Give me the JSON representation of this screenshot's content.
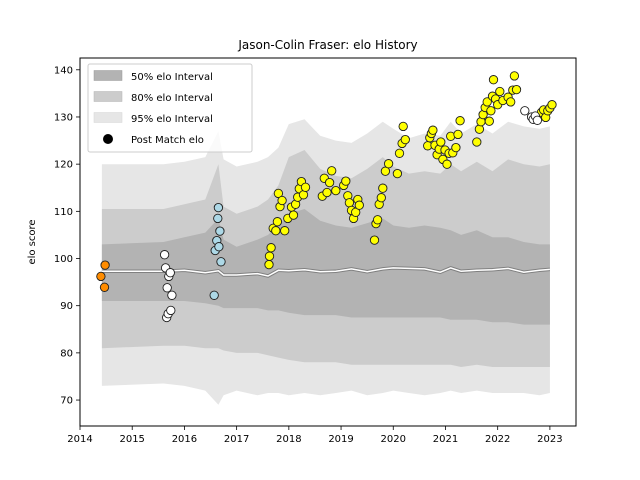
{
  "chart_data": {
    "type": "scatter",
    "title": "Jason-Colin Fraser: elo History",
    "xlabel": "",
    "ylabel": "elo score",
    "xlim": [
      2014.0,
      2023.5
    ],
    "ylim": [
      64.5,
      142.5
    ],
    "xticks": [
      2014,
      2015,
      2016,
      2017,
      2018,
      2019,
      2020,
      2021,
      2022,
      2023
    ],
    "yticks": [
      70,
      80,
      90,
      100,
      110,
      120,
      130,
      140
    ],
    "grid": false,
    "legend_position": "upper-left",
    "legend": [
      {
        "label": "50% elo Interval",
        "kind": "band",
        "color": "#b3b3b3"
      },
      {
        "label": "80% elo Interval",
        "kind": "band",
        "color": "#cccccc"
      },
      {
        "label": "95% elo Interval",
        "kind": "band",
        "color": "#e6e6e6"
      },
      {
        "label": "Post Match elo",
        "kind": "marker",
        "color": "#000000"
      }
    ],
    "bands": {
      "x": [
        2014.42,
        2015.6,
        2016.0,
        2016.4,
        2016.65,
        2016.75,
        2017.0,
        2017.4,
        2017.6,
        2017.8,
        2018.0,
        2018.3,
        2018.6,
        2018.9,
        2019.2,
        2019.5,
        2019.8,
        2020.0,
        2020.3,
        2020.6,
        2020.9,
        2021.1,
        2021.3,
        2021.6,
        2021.9,
        2022.2,
        2022.5,
        2022.8,
        2023.0
      ],
      "p95_upper": [
        120.0,
        120.0,
        120.5,
        121.5,
        127.0,
        121.0,
        119.5,
        120.5,
        121.5,
        123.5,
        128.5,
        129.5,
        126.0,
        125.0,
        124.5,
        126.5,
        129.0,
        127.5,
        125.5,
        126.5,
        126.0,
        129.0,
        126.5,
        128.5,
        126.5,
        129.0,
        128.0,
        127.5,
        128.0
      ],
      "p80_upper": [
        110.5,
        110.5,
        111.5,
        112.5,
        120.0,
        111.0,
        109.5,
        111.0,
        112.5,
        115.5,
        121.5,
        123.0,
        119.0,
        117.5,
        117.0,
        119.0,
        121.5,
        119.5,
        118.0,
        118.5,
        118.0,
        120.0,
        118.5,
        120.5,
        118.5,
        121.0,
        120.0,
        119.5,
        120.0
      ],
      "p50_upper": [
        103.0,
        103.5,
        104.5,
        105.5,
        108.5,
        104.0,
        102.5,
        104.0,
        105.0,
        107.0,
        109.5,
        110.5,
        108.0,
        107.0,
        106.5,
        107.5,
        108.5,
        107.0,
        106.5,
        107.0,
        106.5,
        106.0,
        105.0,
        106.0,
        104.5,
        104.5,
        103.5,
        103.0,
        103.0
      ],
      "median": [
        97.3,
        97.3,
        97.5,
        97.0,
        97.4,
        96.5,
        96.5,
        96.8,
        96.3,
        97.5,
        97.4,
        97.6,
        97.2,
        97.3,
        97.8,
        97.2,
        97.8,
        98.0,
        97.9,
        97.8,
        97.1,
        98.0,
        97.3,
        97.5,
        97.6,
        97.9,
        97.1,
        97.5,
        97.7
      ],
      "p50_lower": [
        91.0,
        91.0,
        91.0,
        90.5,
        90.0,
        89.5,
        89.5,
        89.5,
        89.0,
        89.0,
        88.5,
        88.0,
        88.0,
        88.0,
        87.5,
        87.5,
        87.5,
        87.5,
        87.5,
        87.5,
        87.5,
        87.0,
        87.0,
        87.0,
        86.5,
        86.5,
        86.0,
        86.0,
        86.0
      ],
      "p80_lower": [
        81.0,
        81.5,
        81.5,
        81.0,
        81.0,
        80.5,
        80.0,
        80.0,
        79.5,
        79.0,
        78.5,
        78.0,
        78.0,
        78.0,
        77.5,
        77.5,
        77.5,
        77.5,
        77.5,
        77.5,
        77.5,
        77.5,
        77.0,
        77.5,
        77.0,
        77.0,
        77.0,
        77.0,
        77.0
      ],
      "p95_lower": [
        73.0,
        73.5,
        73.0,
        72.0,
        69.0,
        71.0,
        72.0,
        71.0,
        71.5,
        71.5,
        71.0,
        71.5,
        71.0,
        71.5,
        72.0,
        71.0,
        71.5,
        72.0,
        71.5,
        71.0,
        71.5,
        72.0,
        71.5,
        72.0,
        71.5,
        71.5,
        71.5,
        71.0,
        71.5
      ]
    },
    "point_series": [
      {
        "color": "#ff8c00",
        "points": [
          [
            2014.4,
            96.2
          ],
          [
            2014.48,
            98.6
          ],
          [
            2014.47,
            93.9
          ]
        ]
      },
      {
        "color": "#ffffff",
        "points": [
          [
            2015.62,
            100.8
          ],
          [
            2015.64,
            98.0
          ],
          [
            2015.7,
            96.2
          ],
          [
            2015.73,
            97.0
          ],
          [
            2015.67,
            93.8
          ],
          [
            2015.76,
            92.2
          ],
          [
            2015.66,
            87.5
          ],
          [
            2015.69,
            88.3
          ],
          [
            2015.74,
            89.0
          ]
        ]
      },
      {
        "color": "#add8e6",
        "points": [
          [
            2016.59,
            101.7
          ],
          [
            2016.62,
            103.8
          ],
          [
            2016.66,
            102.5
          ],
          [
            2016.64,
            108.5
          ],
          [
            2016.65,
            110.8
          ],
          [
            2016.68,
            105.8
          ],
          [
            2016.7,
            99.3
          ],
          [
            2016.57,
            92.2
          ]
        ]
      },
      {
        "color": "#ffff00",
        "points": [
          [
            2017.62,
            98.7
          ],
          [
            2017.63,
            100.5
          ],
          [
            2017.66,
            102.3
          ],
          [
            2017.7,
            106.4
          ],
          [
            2017.75,
            105.9
          ],
          [
            2017.78,
            107.8
          ],
          [
            2017.8,
            113.8
          ],
          [
            2017.83,
            111.0
          ],
          [
            2017.87,
            112.3
          ],
          [
            2017.92,
            105.9
          ],
          [
            2017.98,
            108.5
          ],
          [
            2018.05,
            110.9
          ],
          [
            2018.09,
            109.2
          ],
          [
            2018.13,
            111.5
          ],
          [
            2018.17,
            113.0
          ],
          [
            2018.2,
            114.8
          ],
          [
            2018.24,
            116.3
          ],
          [
            2018.28,
            113.5
          ],
          [
            2018.32,
            115.1
          ],
          [
            2018.64,
            113.2
          ],
          [
            2018.68,
            117.0
          ],
          [
            2018.73,
            114.0
          ],
          [
            2018.78,
            116.1
          ],
          [
            2018.82,
            118.6
          ],
          [
            2018.9,
            114.4
          ],
          [
            2019.05,
            115.5
          ],
          [
            2019.09,
            116.4
          ],
          [
            2019.13,
            113.3
          ],
          [
            2019.16,
            111.8
          ],
          [
            2019.2,
            110.2
          ],
          [
            2019.24,
            108.5
          ],
          [
            2019.28,
            109.8
          ],
          [
            2019.32,
            112.5
          ],
          [
            2019.35,
            111.3
          ],
          [
            2019.64,
            103.9
          ],
          [
            2019.67,
            107.4
          ],
          [
            2019.7,
            108.2
          ],
          [
            2019.73,
            111.5
          ],
          [
            2019.77,
            112.9
          ],
          [
            2019.8,
            114.9
          ],
          [
            2019.85,
            118.5
          ],
          [
            2019.91,
            120.1
          ],
          [
            2020.08,
            118.0
          ],
          [
            2020.12,
            122.3
          ],
          [
            2020.17,
            124.4
          ],
          [
            2020.19,
            128.0
          ],
          [
            2020.23,
            125.2
          ],
          [
            2020.66,
            123.9
          ],
          [
            2020.7,
            125.6
          ],
          [
            2020.73,
            126.5
          ],
          [
            2020.76,
            127.2
          ],
          [
            2020.8,
            124.0
          ],
          [
            2020.84,
            122.0
          ],
          [
            2020.88,
            123.2
          ],
          [
            2020.91,
            124.7
          ],
          [
            2020.95,
            121.0
          ],
          [
            2020.99,
            123.0
          ],
          [
            2021.03,
            120.0
          ],
          [
            2021.07,
            122.3
          ],
          [
            2021.1,
            125.9
          ],
          [
            2021.14,
            122.4
          ],
          [
            2021.2,
            123.5
          ],
          [
            2021.24,
            126.3
          ],
          [
            2021.28,
            129.2
          ],
          [
            2021.6,
            124.7
          ],
          [
            2021.65,
            127.4
          ],
          [
            2021.68,
            129.0
          ],
          [
            2021.72,
            130.5
          ],
          [
            2021.76,
            132.0
          ],
          [
            2021.8,
            133.2
          ],
          [
            2021.84,
            129.1
          ],
          [
            2021.87,
            131.3
          ],
          [
            2021.9,
            134.4
          ],
          [
            2021.92,
            137.9
          ],
          [
            2021.96,
            133.8
          ],
          [
            2022.0,
            132.6
          ],
          [
            2022.04,
            135.4
          ],
          [
            2022.1,
            133.5
          ],
          [
            2022.2,
            134.2
          ],
          [
            2022.25,
            133.2
          ],
          [
            2022.29,
            135.7
          ],
          [
            2022.32,
            138.7
          ],
          [
            2022.36,
            135.8
          ],
          [
            2022.8,
            130.1
          ],
          [
            2022.84,
            131.0
          ],
          [
            2022.88,
            131.5
          ],
          [
            2022.92,
            129.9
          ],
          [
            2022.96,
            131.3
          ],
          [
            2023.0,
            131.9
          ],
          [
            2023.04,
            132.6
          ]
        ]
      },
      {
        "color": "#ffffff",
        "points": [
          [
            2022.52,
            131.3
          ],
          [
            2022.65,
            130.0
          ],
          [
            2022.68,
            129.5
          ],
          [
            2022.72,
            130.2
          ],
          [
            2022.76,
            129.3
          ]
        ]
      }
    ]
  }
}
